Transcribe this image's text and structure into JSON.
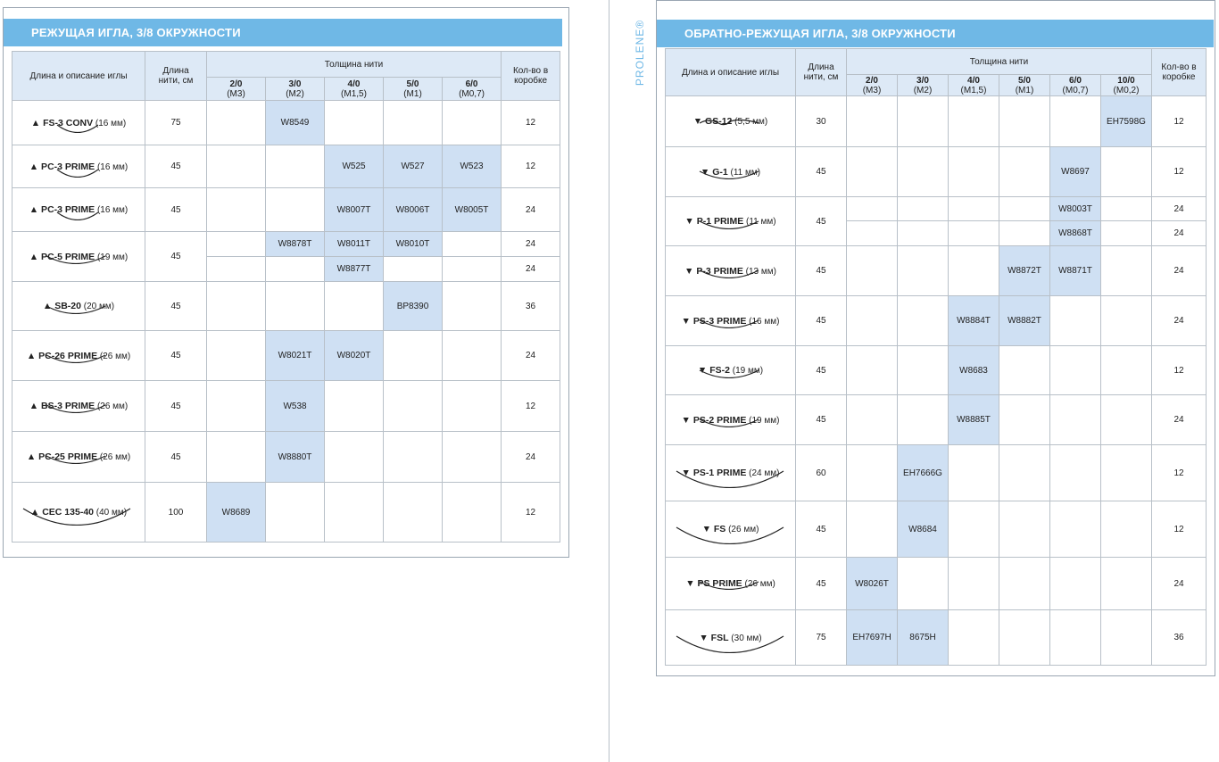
{
  "left": {
    "title": "РЕЖУЩАЯ ИГЛА, 3/8 ОКРУЖНОСТИ",
    "headers": {
      "desc": "Длина и описание иглы",
      "length": "Длина нити, см",
      "gauge_group": "Толщина нити",
      "qty": "Кол-во в коробке",
      "gauges": [
        {
          "g": "2/0",
          "m": "(М3)"
        },
        {
          "g": "3/0",
          "m": "(М2)"
        },
        {
          "g": "4/0",
          "m": "(М1,5)"
        },
        {
          "g": "5/0",
          "m": "(М1)"
        },
        {
          "g": "6/0",
          "m": "(М0,7)"
        }
      ]
    },
    "rows": [
      {
        "mark": "▲",
        "name": "FS-3 CONV",
        "size": "(16 мм)",
        "len": "75",
        "lines": [
          {
            "cells": [
              "",
              "W8549",
              "",
              "",
              ""
            ],
            "qty": "12"
          }
        ]
      },
      {
        "mark": "▲",
        "name": "PC-3 PRIME",
        "size": "(16 мм)",
        "len": "45",
        "lines": [
          {
            "cells": [
              "",
              "",
              "W525",
              "W527",
              "W523"
            ],
            "qty": "12"
          }
        ]
      },
      {
        "mark": "▲",
        "name": "PC-3 PRIME",
        "size": "(16 мм)",
        "len": "45",
        "lines": [
          {
            "cells": [
              "",
              "",
              "W8007T",
              "W8006T",
              "W8005T"
            ],
            "qty": "24"
          }
        ]
      },
      {
        "mark": "▲",
        "name": "PC-5 PRIME",
        "size": "(19 мм)",
        "len": "45",
        "lines": [
          {
            "cells": [
              "",
              "W8878T",
              "W8011T",
              "W8010T",
              ""
            ],
            "qty": "24"
          },
          {
            "cells": [
              "",
              "",
              "W8877T",
              "",
              ""
            ],
            "qty": "24"
          }
        ]
      },
      {
        "mark": "▲",
        "name": "SB-20",
        "size": "(20 мм)",
        "len": "45",
        "lines": [
          {
            "cells": [
              "",
              "",
              "",
              "BP8390",
              ""
            ],
            "qty": "36"
          }
        ]
      },
      {
        "mark": "▲",
        "name": "PC-26 PRIME",
        "size": "(26 мм)",
        "len": "45",
        "lines": [
          {
            "cells": [
              "",
              "W8021T",
              "W8020T",
              "",
              ""
            ],
            "qty": "24"
          }
        ]
      },
      {
        "mark": "▲",
        "name": "BS-3 PRIME",
        "size": "(26 мм)",
        "len": "45",
        "lines": [
          {
            "cells": [
              "",
              "W538",
              "",
              "",
              ""
            ],
            "qty": "12"
          }
        ]
      },
      {
        "mark": "▲",
        "name": "PC-25 PRIME",
        "size": "(26 мм)",
        "len": "45",
        "lines": [
          {
            "cells": [
              "",
              "W8880T",
              "",
              "",
              ""
            ],
            "qty": "24"
          }
        ]
      },
      {
        "mark": "▲",
        "name": "CEC 135-40",
        "size": "(40 мм)",
        "len": "100",
        "lines": [
          {
            "cells": [
              "W8689",
              "",
              "",
              "",
              ""
            ],
            "qty": "12"
          }
        ]
      }
    ]
  },
  "right": {
    "title": "ОБРАТНО-РЕЖУЩАЯ ИГЛА, 3/8 ОКРУЖНОСТИ",
    "brand": "PROLENE®",
    "headers": {
      "desc": "Длина и описание иглы",
      "length": "Длина нити, см",
      "gauge_group": "Толщина нити",
      "qty": "Кол-во в коробке",
      "gauges": [
        {
          "g": "2/0",
          "m": "(М3)"
        },
        {
          "g": "3/0",
          "m": "(М2)"
        },
        {
          "g": "4/0",
          "m": "(М1,5)"
        },
        {
          "g": "5/0",
          "m": "(М1)"
        },
        {
          "g": "6/0",
          "m": "(М0,7)"
        },
        {
          "g": "10/0",
          "m": "(М0,2)"
        }
      ]
    },
    "rows": [
      {
        "mark": "▼",
        "name": "GS-12",
        "size": "(5,5 мм)",
        "len": "30",
        "lines": [
          {
            "cells": [
              "",
              "",
              "",
              "",
              "",
              "EH7598G"
            ],
            "qty": "12"
          }
        ]
      },
      {
        "mark": "▼",
        "name": "G-1",
        "size": "(11 мм)",
        "len": "45",
        "lines": [
          {
            "cells": [
              "",
              "",
              "",
              "",
              "W8697",
              ""
            ],
            "qty": "12"
          }
        ]
      },
      {
        "mark": "▼",
        "name": "P-1 PRIME",
        "size": "(11 мм)",
        "len": "45",
        "lines": [
          {
            "cells": [
              "",
              "",
              "",
              "",
              "W8003T",
              ""
            ],
            "qty": "24"
          },
          {
            "cells": [
              "",
              "",
              "",
              "",
              "W8868T",
              ""
            ],
            "qty": "24"
          }
        ]
      },
      {
        "mark": "▼",
        "name": "P-3 PRIME",
        "size": "(13 мм)",
        "len": "45",
        "lines": [
          {
            "cells": [
              "",
              "",
              "",
              "W8872T",
              "W8871T",
              ""
            ],
            "qty": "24"
          }
        ]
      },
      {
        "mark": "▼",
        "name": "PS-3 PRIME",
        "size": "(16 мм)",
        "len": "45",
        "lines": [
          {
            "cells": [
              "",
              "",
              "W8884T",
              "W8882T",
              "",
              ""
            ],
            "qty": "24"
          }
        ]
      },
      {
        "mark": "▼",
        "name": "FS-2",
        "size": "(19 мм)",
        "len": "45",
        "lines": [
          {
            "cells": [
              "",
              "",
              "W8683",
              "",
              "",
              ""
            ],
            "qty": "12"
          }
        ]
      },
      {
        "mark": "▼",
        "name": "PS-2 PRIME",
        "size": "(19 мм)",
        "len": "45",
        "lines": [
          {
            "cells": [
              "",
              "",
              "W8885T",
              "",
              "",
              ""
            ],
            "qty": "24"
          }
        ]
      },
      {
        "mark": "▼",
        "name": "PS-1 PRIME",
        "size": "(24 мм)",
        "len": "60",
        "lines": [
          {
            "cells": [
              "",
              "EH7666G",
              "",
              "",
              "",
              ""
            ],
            "qty": "12"
          }
        ]
      },
      {
        "mark": "▼",
        "name": "FS",
        "size": "(26 мм)",
        "len": "45",
        "lines": [
          {
            "cells": [
              "",
              "W8684",
              "",
              "",
              "",
              ""
            ],
            "qty": "12"
          }
        ]
      },
      {
        "mark": "▼",
        "name": "PS PRIME",
        "size": "(26 мм)",
        "len": "45",
        "lines": [
          {
            "cells": [
              "W8026T",
              "",
              "",
              "",
              "",
              ""
            ],
            "qty": "24"
          }
        ]
      },
      {
        "mark": "▼",
        "name": "FSL",
        "size": "(30 мм)",
        "len": "75",
        "lines": [
          {
            "cells": [
              "EH7697H",
              "8675H",
              "",
              "",
              "",
              ""
            ],
            "qty": "36"
          }
        ]
      }
    ]
  }
}
